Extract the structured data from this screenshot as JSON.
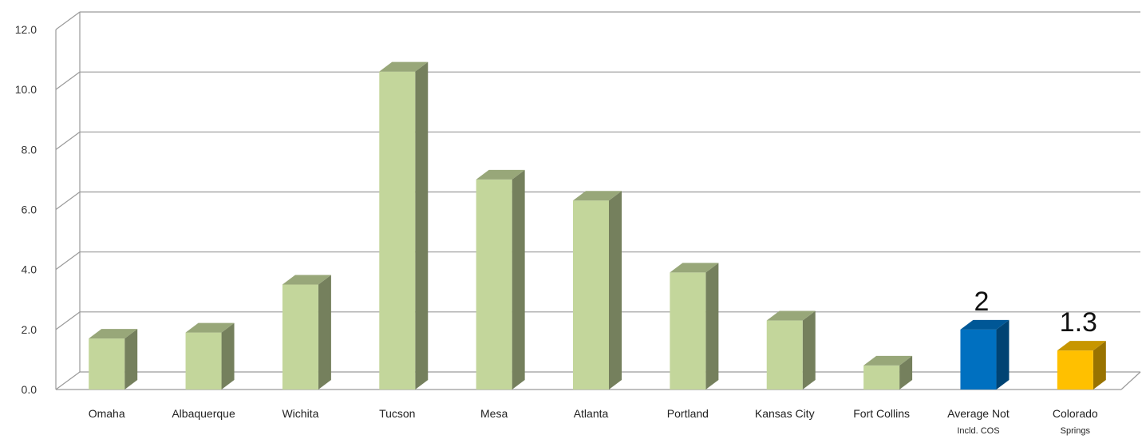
{
  "chart_data": {
    "type": "bar",
    "title": "",
    "xlabel": "",
    "ylabel": "",
    "ylim": [
      0,
      12
    ],
    "y_ticks": [
      "0.0",
      "2.0",
      "4.0",
      "6.0",
      "8.0",
      "10.0",
      "12.0"
    ],
    "categories": [
      [
        "Omaha"
      ],
      [
        "Albaquerque"
      ],
      [
        "Wichita"
      ],
      [
        "Tucson"
      ],
      [
        "Mesa"
      ],
      [
        "Atlanta"
      ],
      [
        "Portland"
      ],
      [
        "Kansas City"
      ],
      [
        "Fort Collins"
      ],
      [
        "Average Not",
        "Incld. COS"
      ],
      [
        "Colorado",
        "Springs"
      ]
    ],
    "values": [
      1.7,
      1.9,
      3.5,
      10.6,
      7.0,
      6.3,
      3.9,
      2.3,
      0.8,
      2.0,
      1.3
    ],
    "bar_colors": [
      "#c3d69b",
      "#c3d69b",
      "#c3d69b",
      "#c3d69b",
      "#c3d69b",
      "#c3d69b",
      "#c3d69b",
      "#c3d69b",
      "#c3d69b",
      "#0070c0",
      "#ffc000"
    ],
    "data_labels": [
      "",
      "",
      "",
      "",
      "",
      "",
      "",
      "",
      "",
      "2",
      "1.3"
    ],
    "grid": true,
    "style": "3d-column"
  }
}
